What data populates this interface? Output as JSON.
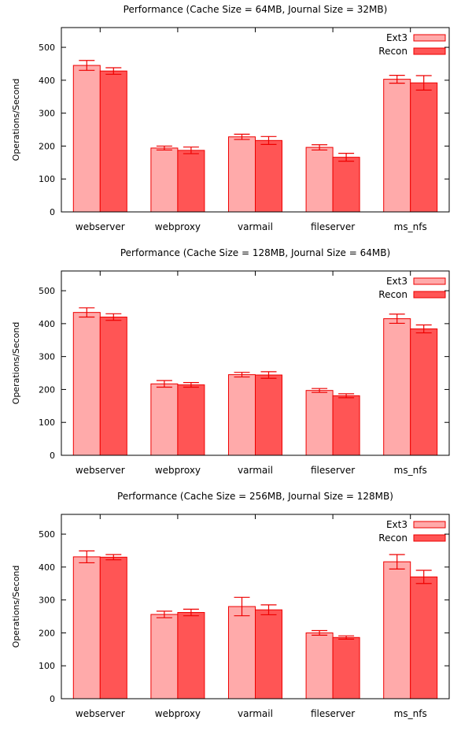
{
  "colors": {
    "ext3": "#ffaaaa",
    "recon": "#ff5555",
    "border": "#ee0000",
    "error": "#ee0000"
  },
  "chart_data": [
    {
      "type": "bar",
      "title": "Performance (Cache Size = 64MB, Journal Size = 32MB)",
      "ylabel": "Operations/Second",
      "ylim": [
        0,
        560
      ],
      "yticks": [
        0,
        100,
        200,
        300,
        400,
        500
      ],
      "categories": [
        "webserver",
        "webproxy",
        "varmail",
        "fileserver",
        "ms_nfs"
      ],
      "legend_position": "top-right",
      "series": [
        {
          "name": "Ext3",
          "values": [
            445,
            194,
            228,
            196,
            403
          ],
          "errors": [
            15,
            6,
            8,
            8,
            12
          ]
        },
        {
          "name": "Recon",
          "values": [
            428,
            187,
            217,
            166,
            392
          ],
          "errors": [
            10,
            10,
            12,
            12,
            22
          ]
        }
      ]
    },
    {
      "type": "bar",
      "title": "Performance (Cache Size = 128MB, Journal Size = 64MB)",
      "ylabel": "Operations/Second",
      "ylim": [
        0,
        560
      ],
      "yticks": [
        0,
        100,
        200,
        300,
        400,
        500
      ],
      "categories": [
        "webserver",
        "webproxy",
        "varmail",
        "fileserver",
        "ms_nfs"
      ],
      "legend_position": "top-right",
      "series": [
        {
          "name": "Ext3",
          "values": [
            434,
            217,
            245,
            197,
            415
          ],
          "errors": [
            14,
            10,
            7,
            6,
            14
          ]
        },
        {
          "name": "Recon",
          "values": [
            420,
            214,
            244,
            181,
            384
          ],
          "errors": [
            10,
            7,
            10,
            6,
            12
          ]
        }
      ]
    },
    {
      "type": "bar",
      "title": "Performance (Cache Size = 256MB, Journal Size = 128MB)",
      "ylabel": "Operations/Second",
      "ylim": [
        0,
        560
      ],
      "yticks": [
        0,
        100,
        200,
        300,
        400,
        500
      ],
      "categories": [
        "webserver",
        "webproxy",
        "varmail",
        "fileserver",
        "ms_nfs"
      ],
      "legend_position": "top-right",
      "series": [
        {
          "name": "Ext3",
          "values": [
            431,
            256,
            280,
            200,
            416
          ],
          "errors": [
            18,
            10,
            28,
            7,
            22
          ]
        },
        {
          "name": "Recon",
          "values": [
            430,
            262,
            270,
            186,
            370
          ],
          "errors": [
            8,
            10,
            15,
            5,
            20
          ]
        }
      ]
    }
  ]
}
